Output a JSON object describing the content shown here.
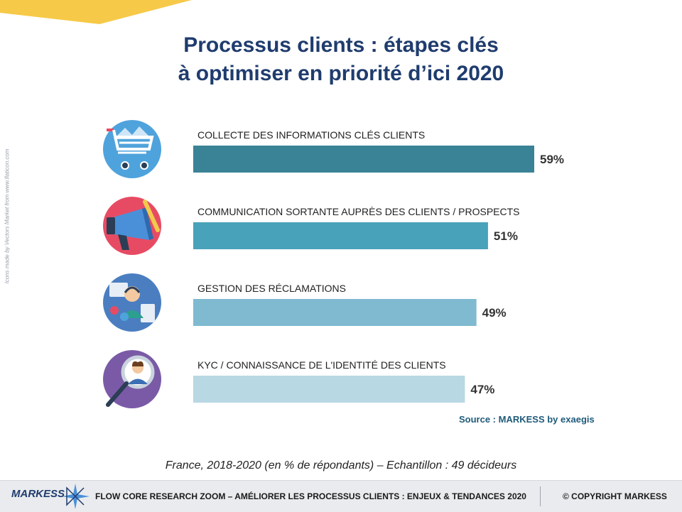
{
  "title_line1": "Processus clients : étapes clés",
  "title_line2": "à optimiser en priorité d’ici 2020",
  "side_credit": "Icons made by Vectors Market from www.flaticon.com",
  "source": "Source : MARKESS by exaegis",
  "footnote": "France, 2018-2020 (en % de répondants) – Echantillon : 49 décideurs",
  "footer": {
    "brand": "MARKESS",
    "report": "FLOW CORE RESEARCH ZOOM – AMÉLIORER LES PROCESSUS CLIENTS : ENJEUX & TENDANCES 2020",
    "copyright": "© COPYRIGHT MARKESS"
  },
  "colors": {
    "title": "#1f3c6e",
    "banner": "#f7c948",
    "bars": [
      "#3a8296",
      "#48a2b9",
      "#7fbad0",
      "#b8d8e3"
    ],
    "icon_circles": [
      "#4fa3dc",
      "#e74b63",
      "#4a7ec0",
      "#7a5aa6"
    ]
  },
  "icons": [
    "shopping-cart-icon",
    "megaphone-icon",
    "customer-support-icon",
    "identity-search-icon"
  ],
  "chart_data": {
    "type": "bar",
    "orientation": "horizontal",
    "categories": [
      "COLLECTE DES INFORMATIONS CLÉS CLIENTS",
      "COMMUNICATION SORTANTE AUPRÈS DES CLIENTS / PROSPECTS",
      "GESTION DES RÉCLAMATIONS",
      "KYC / CONNAISSANCE DE L'IDENTITÉ DES CLIENTS"
    ],
    "values": [
      59,
      51,
      49,
      47
    ],
    "value_labels": [
      "59%",
      "51%",
      "49%",
      "47%"
    ],
    "unit": "%",
    "grid": false,
    "legend": "none"
  }
}
